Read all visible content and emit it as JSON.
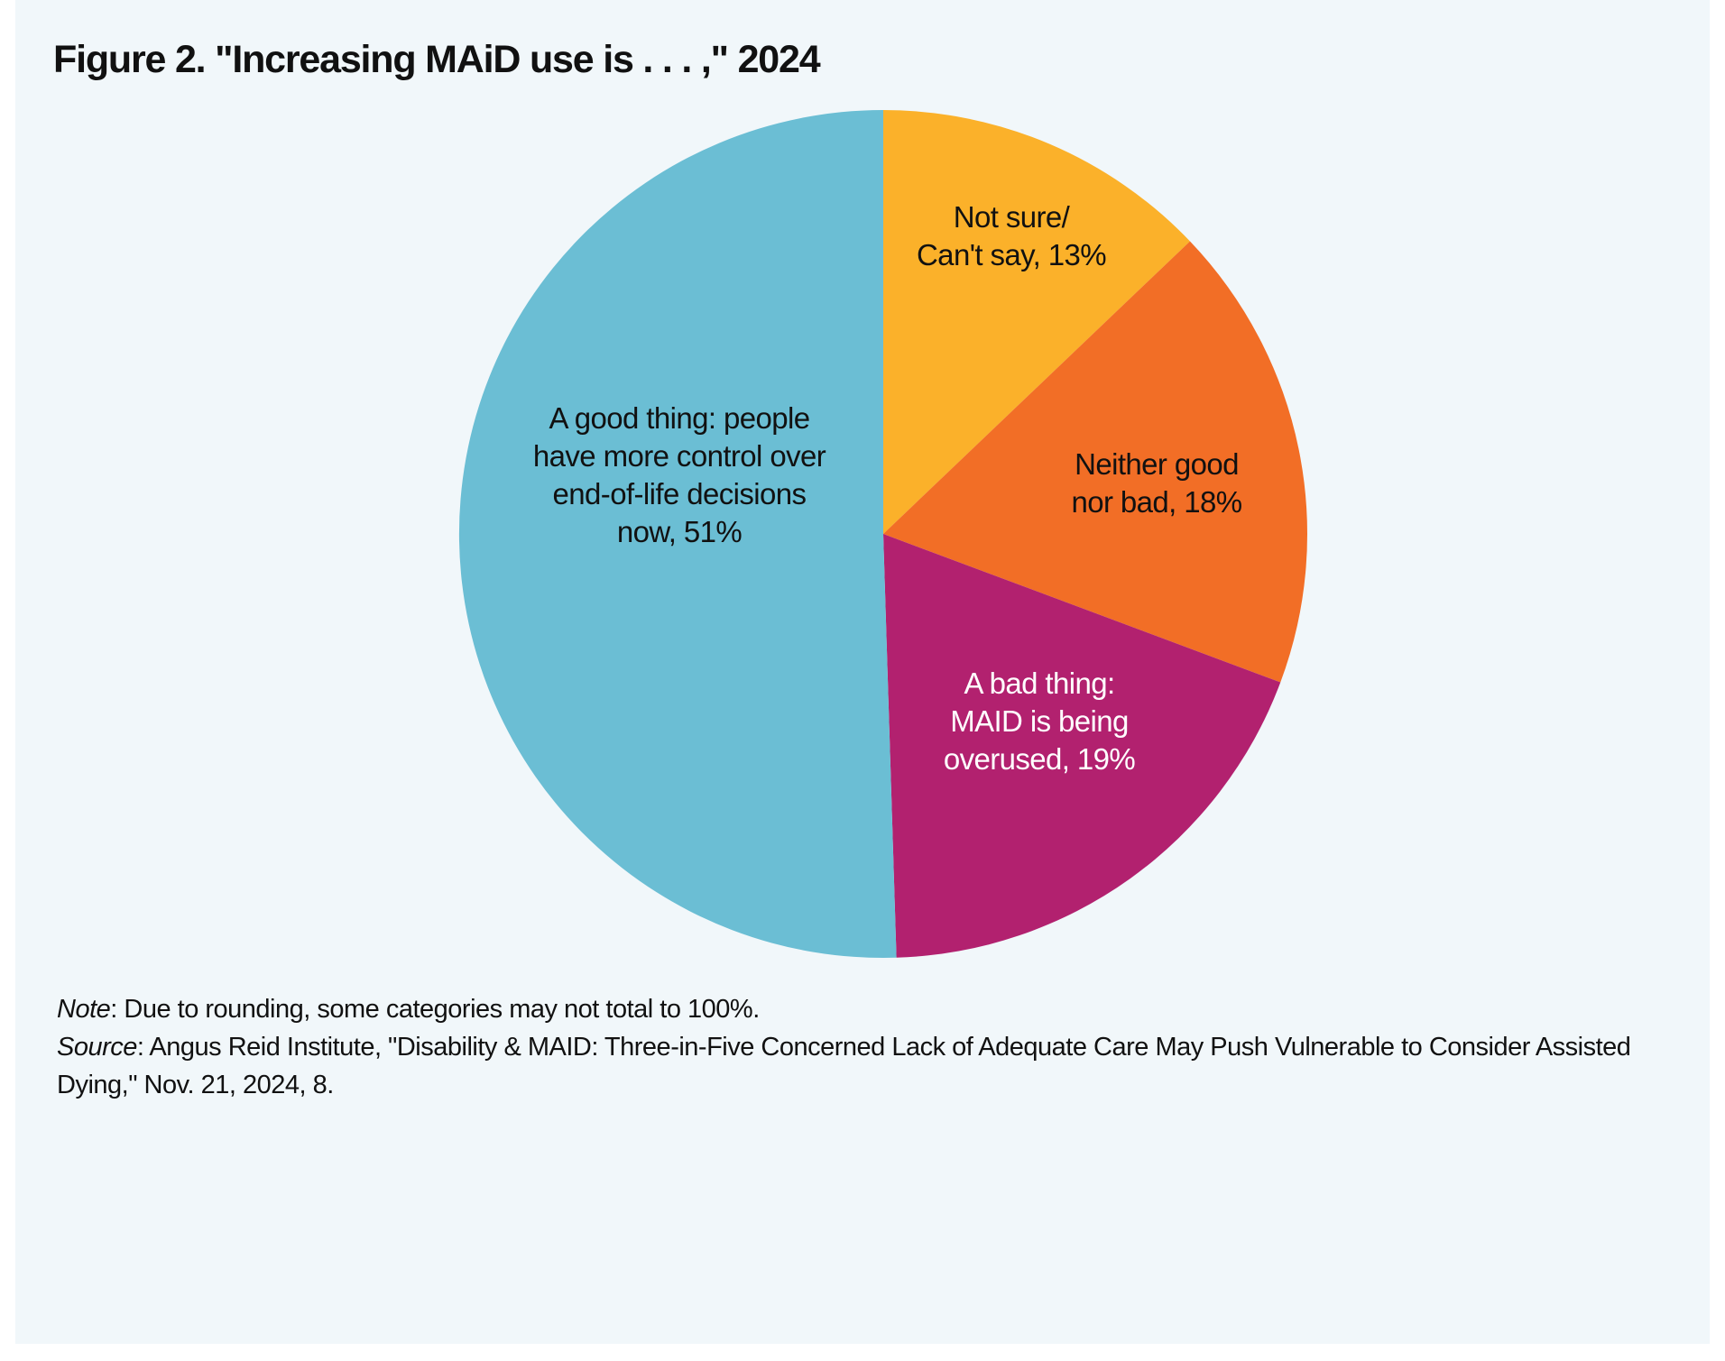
{
  "figure": {
    "title": "Figure 2. \"Increasing MAiD use is . . . ,\" 2024"
  },
  "chart_data": {
    "type": "pie",
    "title": "Figure 2. \"Increasing MAiD use is . . . ,\" 2024",
    "slices": [
      {
        "name": "Not sure/ Can't say",
        "value": 13,
        "color": "#fbb12a",
        "label_lines": [
          "Not sure/",
          "Can't say, 13%"
        ],
        "label_color": "#111111"
      },
      {
        "name": "Neither good nor bad",
        "value": 18,
        "color": "#f26e26",
        "label_lines": [
          "Neither good",
          "nor bad, 18%"
        ],
        "label_color": "#111111"
      },
      {
        "name": "A bad thing: MAID is being overused",
        "value": 19,
        "color": "#b2216f",
        "label_lines": [
          "A bad thing:",
          "MAID is being",
          "overused, 19%"
        ],
        "label_color": "#ffffff"
      },
      {
        "name": "A good thing: people have more control over end-of-life decisions now",
        "value": 51,
        "color": "#6bbed4",
        "label_lines": [
          "A good thing: people",
          "have more control over",
          "end-of-life decisions",
          "now, 51%"
        ],
        "label_color": "#111111"
      }
    ],
    "start": "12 o'clock",
    "direction": "clockwise",
    "legend": "none"
  },
  "notes": {
    "note_label": "Note",
    "note_text": ": Due to rounding, some categories may not total to 100%.",
    "source_label": "Source",
    "source_text": ": Angus Reid Institute, \"Disability & MAID: Three-in-Five Concerned Lack of Adequate Care May Push Vulnerable to Consider Assisted Dying,\" Nov. 21, 2024, 8."
  }
}
